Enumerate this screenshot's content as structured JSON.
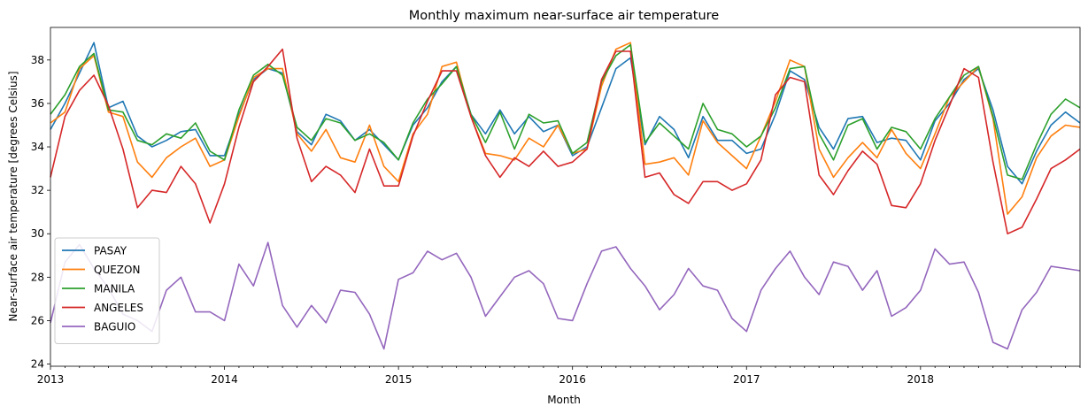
{
  "chart_data": {
    "type": "line",
    "title": "Monthly maximum near-surface air temperature",
    "xlabel": "Month",
    "ylabel": "Near-surface air temperature [degrees Celsius]",
    "x_tick_labels": [
      "2013",
      "2014",
      "2015",
      "2016",
      "2017",
      "2018"
    ],
    "y_ticks": [
      24,
      26,
      28,
      30,
      32,
      34,
      36,
      38
    ],
    "xlim": [
      "2013-01",
      "2018-12"
    ],
    "ylim": [
      23.9,
      39.5
    ],
    "grid": false,
    "legend_position": "lower-left",
    "x": [
      "2013-01",
      "2013-02",
      "2013-03",
      "2013-04",
      "2013-05",
      "2013-06",
      "2013-07",
      "2013-08",
      "2013-09",
      "2013-10",
      "2013-11",
      "2013-12",
      "2014-01",
      "2014-02",
      "2014-03",
      "2014-04",
      "2014-05",
      "2014-06",
      "2014-07",
      "2014-08",
      "2014-09",
      "2014-10",
      "2014-11",
      "2014-12",
      "2015-01",
      "2015-02",
      "2015-03",
      "2015-04",
      "2015-05",
      "2015-06",
      "2015-07",
      "2015-08",
      "2015-09",
      "2015-10",
      "2015-11",
      "2015-12",
      "2016-01",
      "2016-02",
      "2016-03",
      "2016-04",
      "2016-05",
      "2016-06",
      "2016-07",
      "2016-08",
      "2016-09",
      "2016-10",
      "2016-11",
      "2016-12",
      "2017-01",
      "2017-02",
      "2017-03",
      "2017-04",
      "2017-05",
      "2017-06",
      "2017-07",
      "2017-08",
      "2017-09",
      "2017-10",
      "2017-11",
      "2017-12",
      "2018-01",
      "2018-02",
      "2018-03",
      "2018-04",
      "2018-05",
      "2018-06",
      "2018-07",
      "2018-08",
      "2018-09",
      "2018-10",
      "2018-11",
      "2018-12"
    ],
    "series": [
      {
        "name": "PASAY",
        "color": "#1f77b4",
        "values": [
          34.8,
          36.0,
          37.4,
          38.8,
          35.8,
          36.1,
          34.5,
          34.0,
          34.3,
          34.7,
          34.8,
          33.6,
          33.6,
          35.5,
          37.1,
          37.6,
          37.4,
          34.7,
          34.1,
          35.5,
          35.2,
          34.3,
          34.8,
          34.1,
          33.4,
          35.0,
          35.8,
          37.0,
          37.7,
          35.5,
          34.6,
          35.7,
          34.6,
          35.4,
          34.7,
          35.0,
          33.6,
          34.0,
          35.8,
          37.6,
          38.1,
          34.1,
          35.4,
          34.8,
          33.5,
          35.4,
          34.3,
          34.3,
          33.7,
          33.9,
          35.5,
          37.5,
          37.1,
          34.9,
          33.9,
          35.3,
          35.4,
          34.2,
          34.4,
          34.3,
          33.4,
          35.2,
          36.0,
          37.1,
          37.6,
          35.7,
          33.1,
          32.3,
          33.8,
          35.0,
          35.6,
          35.1
        ]
      },
      {
        "name": "QUEZON",
        "color": "#ff7f0e",
        "values": [
          35.1,
          35.6,
          37.6,
          38.2,
          35.6,
          35.4,
          33.3,
          32.6,
          33.5,
          34.0,
          34.4,
          33.1,
          33.4,
          35.4,
          37.2,
          37.6,
          37.6,
          34.6,
          33.8,
          34.8,
          33.5,
          33.3,
          35.0,
          33.1,
          32.4,
          34.6,
          35.5,
          37.7,
          37.9,
          35.4,
          33.7,
          33.6,
          33.4,
          34.4,
          34.0,
          35.0,
          33.7,
          33.9,
          36.8,
          38.5,
          38.8,
          33.2,
          33.3,
          33.5,
          32.7,
          35.2,
          34.2,
          33.6,
          33.0,
          34.5,
          36.1,
          38.0,
          37.7,
          33.9,
          32.6,
          33.5,
          34.2,
          33.5,
          34.8,
          33.7,
          33.0,
          34.6,
          36.3,
          37.0,
          37.7,
          35.3,
          30.9,
          31.7,
          33.5,
          34.5,
          35.0,
          34.9
        ]
      },
      {
        "name": "MANILA",
        "color": "#2ca02c",
        "values": [
          35.5,
          36.4,
          37.7,
          38.3,
          35.7,
          35.6,
          34.3,
          34.1,
          34.6,
          34.4,
          35.1,
          33.8,
          33.4,
          35.7,
          37.3,
          37.8,
          37.3,
          34.9,
          34.3,
          35.3,
          35.1,
          34.3,
          34.6,
          34.2,
          33.4,
          35.1,
          36.2,
          36.9,
          37.7,
          35.5,
          34.2,
          35.6,
          33.9,
          35.5,
          35.1,
          35.2,
          33.7,
          34.2,
          37.0,
          38.2,
          38.7,
          34.2,
          35.1,
          34.5,
          33.9,
          36.0,
          34.8,
          34.6,
          34.0,
          34.5,
          35.8,
          37.6,
          37.7,
          34.6,
          33.4,
          35.0,
          35.3,
          33.9,
          34.9,
          34.7,
          33.9,
          35.3,
          36.3,
          37.3,
          37.7,
          35.4,
          32.7,
          32.5,
          34.1,
          35.5,
          36.2,
          35.8
        ]
      },
      {
        "name": "ANGELES",
        "color": "#d62728",
        "values": [
          32.6,
          35.4,
          36.6,
          37.3,
          35.9,
          33.9,
          31.2,
          32.0,
          31.9,
          33.1,
          32.3,
          30.5,
          32.3,
          34.9,
          37.0,
          37.7,
          38.5,
          34.4,
          32.4,
          33.1,
          32.7,
          31.9,
          33.9,
          32.2,
          32.2,
          34.5,
          36.1,
          37.5,
          37.5,
          35.4,
          33.6,
          32.6,
          33.5,
          33.1,
          33.8,
          33.1,
          33.3,
          33.9,
          37.1,
          38.4,
          38.4,
          32.6,
          32.8,
          31.8,
          31.4,
          32.4,
          32.4,
          32.0,
          32.3,
          33.4,
          36.4,
          37.2,
          37.0,
          32.7,
          31.8,
          32.9,
          33.8,
          33.2,
          31.3,
          31.2,
          32.3,
          34.3,
          35.9,
          37.6,
          37.2,
          33.3,
          30.0,
          30.3,
          31.6,
          33.0,
          33.4,
          33.9
        ]
      },
      {
        "name": "BAGUIO",
        "color": "#9467bd",
        "values": [
          25.9,
          28.7,
          29.5,
          28.4,
          27.5,
          26.3,
          26.0,
          25.5,
          27.4,
          28.0,
          26.4,
          26.4,
          26.0,
          28.6,
          27.6,
          29.6,
          26.7,
          25.7,
          26.7,
          25.9,
          27.4,
          27.3,
          26.3,
          24.7,
          27.9,
          28.2,
          29.2,
          28.8,
          29.1,
          28.0,
          26.2,
          27.1,
          28.0,
          28.3,
          27.7,
          26.1,
          26.0,
          27.7,
          29.2,
          29.4,
          28.4,
          27.6,
          26.5,
          27.2,
          28.4,
          27.6,
          27.4,
          26.1,
          25.5,
          27.4,
          28.4,
          29.2,
          28.0,
          27.2,
          28.7,
          28.5,
          27.4,
          28.3,
          26.2,
          26.6,
          27.4,
          29.3,
          28.6,
          28.7,
          27.3,
          25.0,
          24.7,
          26.5,
          27.3,
          28.5,
          28.4,
          28.3
        ]
      }
    ]
  }
}
